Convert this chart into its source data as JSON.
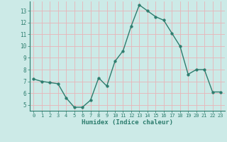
{
  "x": [
    0,
    1,
    2,
    3,
    4,
    5,
    6,
    7,
    8,
    9,
    10,
    11,
    12,
    13,
    14,
    15,
    16,
    17,
    18,
    19,
    20,
    21,
    22,
    23
  ],
  "y": [
    7.2,
    7.0,
    6.9,
    6.8,
    5.6,
    4.8,
    4.8,
    5.4,
    7.3,
    6.6,
    8.7,
    9.6,
    11.7,
    13.5,
    13.0,
    12.5,
    12.2,
    11.1,
    10.0,
    7.6,
    8.0,
    8.0,
    6.1,
    6.1
  ],
  "xlabel": "Humidex (Indice chaleur)",
  "ylim": [
    4.5,
    13.8
  ],
  "xlim": [
    -0.5,
    23.5
  ],
  "yticks": [
    5,
    6,
    7,
    8,
    9,
    10,
    11,
    12,
    13
  ],
  "xticks": [
    0,
    1,
    2,
    3,
    4,
    5,
    6,
    7,
    8,
    9,
    10,
    11,
    12,
    13,
    14,
    15,
    16,
    17,
    18,
    19,
    20,
    21,
    22,
    23
  ],
  "line_color": "#2d7d6e",
  "marker": "o",
  "marker_size": 2.5,
  "bg_color": "#cceae7",
  "grid_color": "#e8b4b8",
  "axis_color": "#2d7d6e",
  "label_color": "#2d7d6e",
  "xlabel_color": "#2d7d6e"
}
